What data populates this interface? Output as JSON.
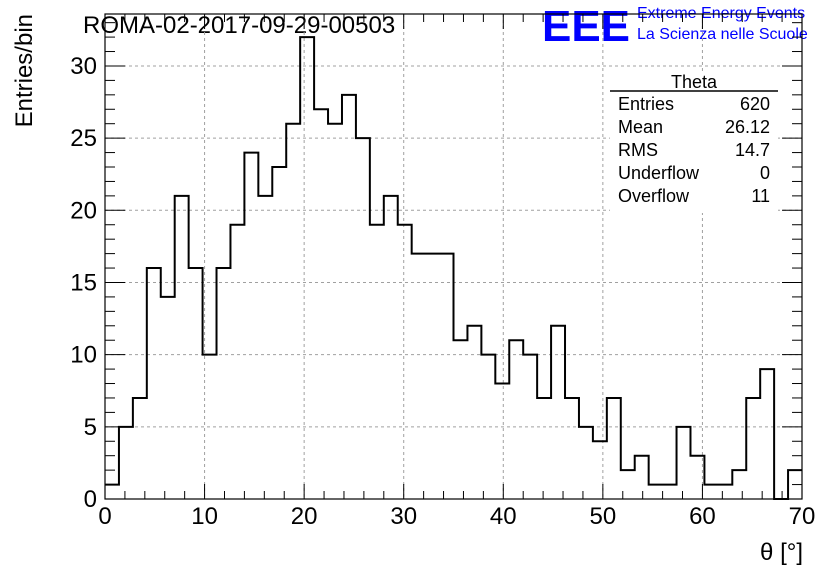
{
  "chart_data": {
    "type": "histogram",
    "title": "ROMA-02-2017-09-29-00503",
    "xlabel": "θ [°]",
    "ylabel": "Entries/bin",
    "xlim": [
      0,
      70
    ],
    "ylim": [
      0,
      33.6
    ],
    "grid": true,
    "bin_width": 1.4,
    "x_ticks": [
      0,
      10,
      20,
      30,
      40,
      50,
      60,
      70
    ],
    "y_ticks": [
      0,
      5,
      10,
      15,
      20,
      25,
      30
    ],
    "values": [
      1,
      5,
      7,
      16,
      14,
      21,
      16,
      10,
      16,
      19,
      24,
      21,
      23,
      26,
      32,
      27,
      26,
      28,
      25,
      19,
      21,
      19,
      17,
      17,
      17,
      11,
      12,
      10,
      8,
      11,
      10,
      7,
      12,
      7,
      5,
      4,
      7,
      2,
      3,
      1,
      1,
      5,
      3,
      1,
      1,
      2,
      7,
      9,
      0,
      2
    ],
    "stats_box": {
      "title": "Theta",
      "rows": [
        {
          "label": "Entries",
          "value": "620"
        },
        {
          "label": "Mean",
          "value": "26.12"
        },
        {
          "label": "RMS",
          "value": "14.7"
        },
        {
          "label": "Underflow",
          "value": "0"
        },
        {
          "label": "Overflow",
          "value": "11"
        }
      ]
    }
  },
  "logo": {
    "text": "EEE",
    "line1": "Extreme Energy Events",
    "line2": "La Scienza nelle Scuole",
    "color": "#0000ff"
  },
  "colors": {
    "line": "#000000",
    "grid": "#a0a0a0",
    "logo": "#0000ff"
  }
}
